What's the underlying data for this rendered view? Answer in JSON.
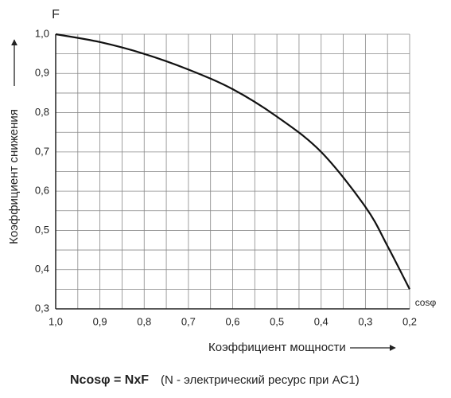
{
  "chart_data": {
    "type": "line",
    "y_axis_symbol": "F",
    "x_axis_symbol": "cosφ",
    "ylabel": "Коэффициент снижения",
    "xlabel": "Коэффициент мощности",
    "formula": "Ncosφ = NxF",
    "note": "(N - электрический ресурс при AC1)",
    "x": [
      1.0,
      0.9,
      0.8,
      0.7,
      0.6,
      0.5,
      0.4,
      0.3,
      0.25,
      0.2
    ],
    "values": [
      1.0,
      0.98,
      0.95,
      0.91,
      0.86,
      0.79,
      0.7,
      0.56,
      0.46,
      0.35
    ],
    "color": "#111111",
    "xlim": [
      1.0,
      0.2
    ],
    "ylim": [
      0.3,
      1.0
    ],
    "xticks": [
      {
        "value": 1.0,
        "label": "1,0"
      },
      {
        "value": 0.9,
        "label": "0,9"
      },
      {
        "value": 0.8,
        "label": "0,8"
      },
      {
        "value": 0.7,
        "label": "0,7"
      },
      {
        "value": 0.6,
        "label": "0,6"
      },
      {
        "value": 0.5,
        "label": "0,5"
      },
      {
        "value": 0.4,
        "label": "0,4"
      },
      {
        "value": 0.3,
        "label": "0,3"
      },
      {
        "value": 0.2,
        "label": "0,2"
      }
    ],
    "yticks": [
      {
        "value": 0.3,
        "label": "0,3"
      },
      {
        "value": 0.4,
        "label": "0,4"
      },
      {
        "value": 0.5,
        "label": "0,5"
      },
      {
        "value": 0.6,
        "label": "0,6"
      },
      {
        "value": 0.7,
        "label": "0,7"
      },
      {
        "value": 0.8,
        "label": "0,8"
      },
      {
        "value": 0.9,
        "label": "0,9"
      },
      {
        "value": 1.0,
        "label": "1,0"
      }
    ],
    "x_minor_ticks": [
      0.95,
      0.85,
      0.75,
      0.65,
      0.55,
      0.45,
      0.35,
      0.25
    ],
    "y_minor_ticks": [
      0.95,
      0.85,
      0.75,
      0.65,
      0.55,
      0.45,
      0.35
    ],
    "grid": true
  }
}
